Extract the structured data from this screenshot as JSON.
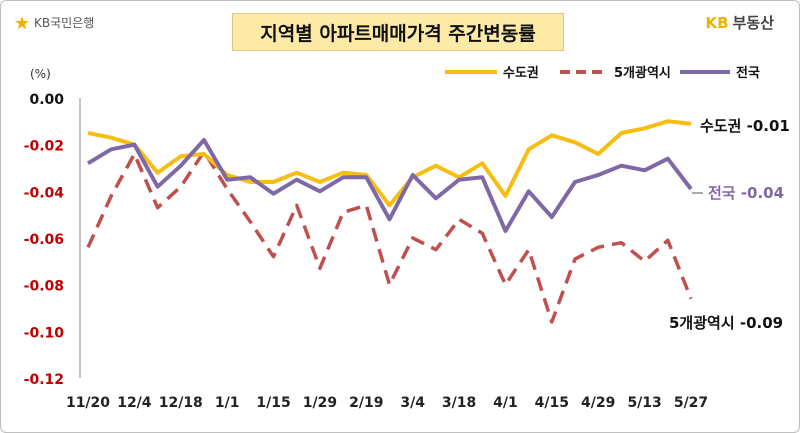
{
  "header": {
    "left_logo_text": "KB국민은행",
    "left_logo_icon": "kb-star-icon",
    "title": "지역별 아파트매매가격 주간변동률",
    "right_logo_kb": "KB",
    "right_logo_text": "부동산"
  },
  "colors": {
    "capital": "#f7bd12",
    "metro": "#c0504d",
    "national": "#7f68a6"
  },
  "chart_data": {
    "type": "line",
    "title": "지역별 아파트매매가격 주간변동률",
    "ylabel": "(%)",
    "ylim": [
      -0.12,
      0.0
    ],
    "yticks": [
      "0.00",
      "-0.02",
      "-0.04",
      "-0.06",
      "-0.08",
      "-0.10",
      "-0.12"
    ],
    "x_tick_labels": [
      "11/20",
      "12/4",
      "12/18",
      "1/1",
      "1/15",
      "1/29",
      "2/19",
      "3/4",
      "3/18",
      "4/1",
      "4/15",
      "4/29",
      "5/13",
      "5/27"
    ],
    "legend_position": "top",
    "series": [
      {
        "name": "수도권",
        "style": "solid",
        "color": "#f7bd12",
        "values": [
          -0.015,
          -0.017,
          -0.02,
          -0.032,
          -0.025,
          -0.024,
          -0.033,
          -0.036,
          -0.036,
          -0.032,
          -0.036,
          -0.032,
          -0.033,
          -0.046,
          -0.034,
          -0.029,
          -0.034,
          -0.028,
          -0.042,
          -0.022,
          -0.016,
          -0.019,
          -0.024,
          -0.015,
          -0.013,
          -0.01,
          -0.011
        ],
        "end_label": "수도권 -0.01"
      },
      {
        "name": "5개광역시",
        "style": "dashed",
        "color": "#c0504d",
        "values": [
          -0.064,
          -0.042,
          -0.024,
          -0.047,
          -0.038,
          -0.023,
          -0.039,
          -0.053,
          -0.068,
          -0.046,
          -0.073,
          -0.049,
          -0.046,
          -0.08,
          -0.06,
          -0.065,
          -0.052,
          -0.058,
          -0.08,
          -0.065,
          -0.096,
          -0.069,
          -0.064,
          -0.062,
          -0.07,
          -0.061,
          -0.086
        ],
        "end_label": "5개광역시 -0.09"
      },
      {
        "name": "전국",
        "style": "solid",
        "color": "#7f68a6",
        "values": [
          -0.028,
          -0.022,
          -0.02,
          -0.038,
          -0.029,
          -0.018,
          -0.035,
          -0.034,
          -0.041,
          -0.035,
          -0.04,
          -0.034,
          -0.034,
          -0.052,
          -0.033,
          -0.043,
          -0.035,
          -0.034,
          -0.057,
          -0.04,
          -0.051,
          -0.036,
          -0.033,
          -0.029,
          -0.031,
          -0.026,
          -0.039
        ],
        "end_label": "전국 -0.04"
      }
    ]
  }
}
